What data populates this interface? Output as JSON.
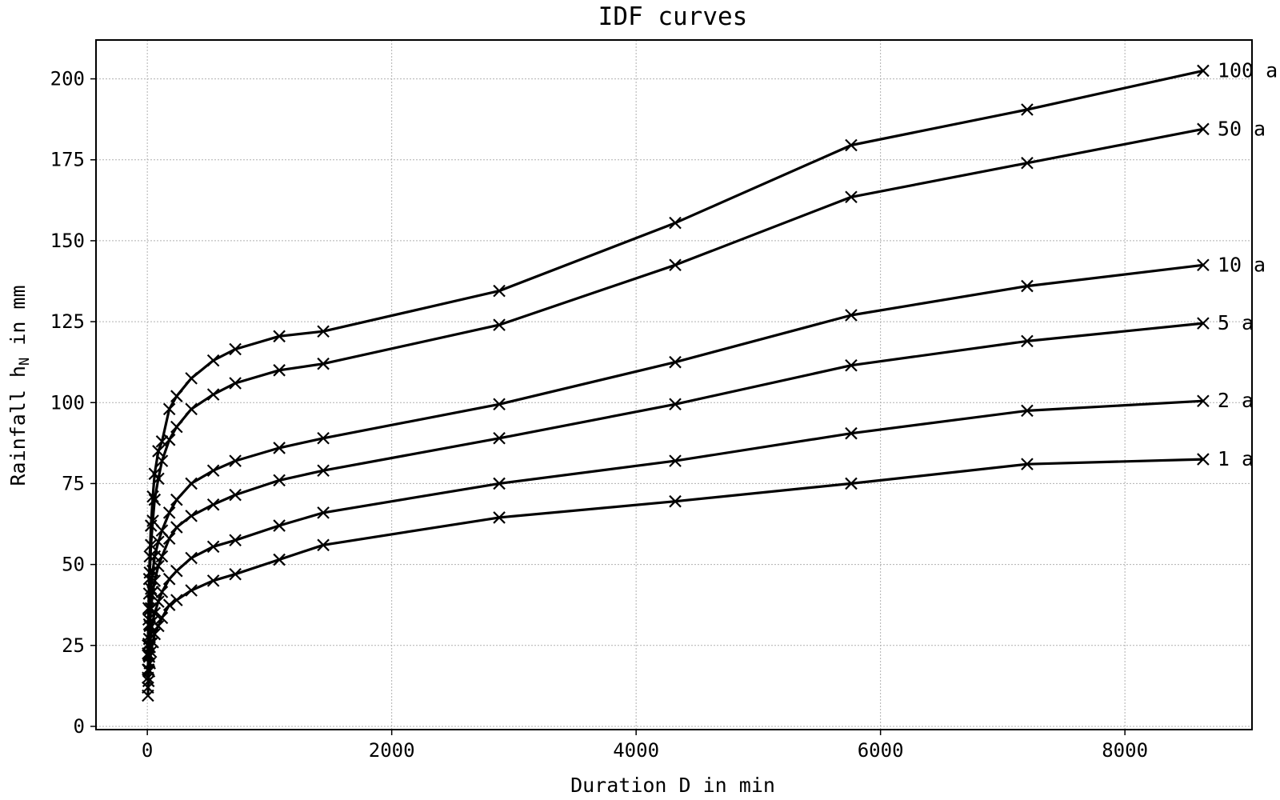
{
  "chart_data": {
    "type": "line",
    "title": "IDF curves",
    "xlabel": "Duration D in min",
    "ylabel_main": "Rainfall h",
    "ylabel_sub": "N",
    "ylabel_tail": " in mm",
    "xlim": [
      -420,
      9040
    ],
    "ylim": [
      -1,
      212
    ],
    "xticks": [
      0,
      2000,
      4000,
      6000,
      8000
    ],
    "yticks": [
      0,
      25,
      50,
      75,
      100,
      125,
      150,
      175,
      200
    ],
    "grid": true,
    "marker": "x",
    "line_color": "#000000",
    "x": [
      5,
      10,
      15,
      20,
      30,
      45,
      60,
      90,
      120,
      180,
      240,
      360,
      540,
      720,
      1080,
      1440,
      2880,
      4320,
      5760,
      7200,
      8640
    ],
    "series": [
      {
        "name": "1 a",
        "values": [
          9.5,
          14,
          17,
          19.5,
          23,
          26,
          28.5,
          31,
          33.5,
          37.5,
          39,
          42,
          45,
          47,
          51.5,
          56,
          64.5,
          69.5,
          75,
          81,
          82.5
        ]
      },
      {
        "name": "2 a",
        "values": [
          12,
          17.5,
          21.5,
          24.5,
          28.5,
          32.5,
          35,
          38.5,
          41.5,
          45.5,
          48,
          52,
          55.5,
          57.5,
          62,
          66,
          75,
          82,
          90.5,
          97.5,
          100.5
        ]
      },
      {
        "name": "5 a",
        "values": [
          15,
          22,
          27,
          31,
          36.5,
          41.5,
          45,
          49.5,
          52.5,
          58,
          61.5,
          65,
          68.5,
          71.5,
          76,
          79,
          89,
          99.5,
          111.5,
          119,
          124.5
        ]
      },
      {
        "name": "10 a",
        "values": [
          17.5,
          25.5,
          31.5,
          36,
          42.5,
          48,
          52.5,
          57,
          60.5,
          66,
          70,
          75,
          79,
          82,
          86,
          89,
          99.5,
          112.5,
          127,
          136,
          142.5
        ]
      },
      {
        "name": "50 a",
        "values": [
          22.5,
          33,
          41,
          47.5,
          56,
          63.5,
          70,
          76.5,
          82,
          88.5,
          92.5,
          98,
          102.5,
          106,
          110,
          112,
          124,
          142.5,
          163.5,
          174,
          184.5
        ]
      },
      {
        "name": "100 a",
        "values": [
          25,
          36.5,
          45.5,
          52.5,
          62,
          71,
          78,
          85,
          88,
          98,
          102,
          107.5,
          113,
          116.5,
          120.5,
          122,
          134.5,
          155.5,
          179.5,
          190.5,
          202.5
        ]
      }
    ]
  }
}
